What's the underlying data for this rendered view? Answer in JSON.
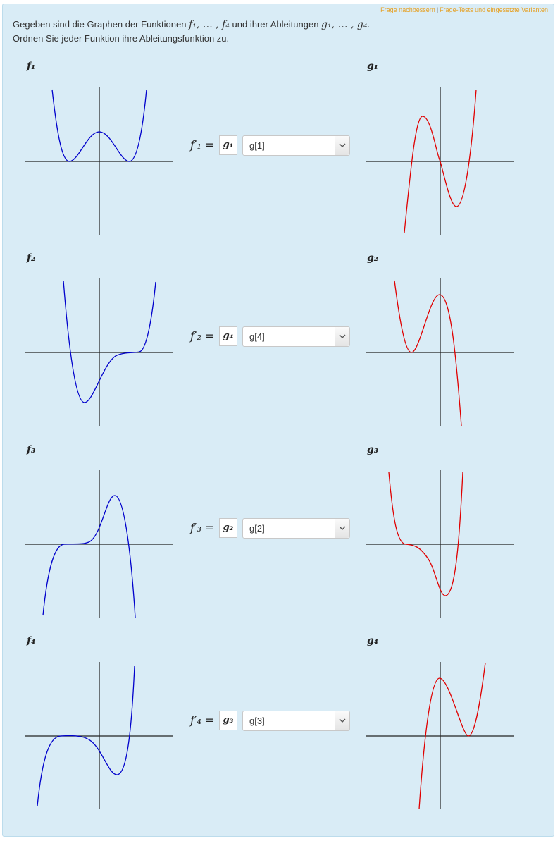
{
  "toplinks": {
    "improve": "Frage nachbessern",
    "separator": "|",
    "tests": "Frage-Tests und eingesetzte Varianten"
  },
  "intro": {
    "line1_a": "Gegeben sind die Graphen der Funktionen",
    "fset": "f₁, … , f₄",
    "line1_b": "und ihrer Ableitungen",
    "gset": "g₁, … , g₄",
    "period": ".",
    "line2": "Ordnen Sie jeder Funktion ihre Ableitungsfunktion zu."
  },
  "rows": [
    {
      "f_label": "f₁",
      "g_label": "g₁",
      "eq": "f′₁ =",
      "answer": "g₁",
      "select_value": "g[1]"
    },
    {
      "f_label": "f₂",
      "g_label": "g₂",
      "eq": "f′₂ =",
      "answer": "g₄",
      "select_value": "g[4]"
    },
    {
      "f_label": "f₃",
      "g_label": "g₃",
      "eq": "f′₃ =",
      "answer": "g₂",
      "select_value": "g[2]"
    },
    {
      "f_label": "f₄",
      "g_label": "g₄",
      "eq": "f′₄ =",
      "answer": "g₃",
      "select_value": "g[3]"
    }
  ],
  "colors": {
    "f_curve": "#0000cc",
    "g_curve": "#e00000",
    "axes": "#222222",
    "panel": "#d9ecf6",
    "link": "#e6a022"
  }
}
